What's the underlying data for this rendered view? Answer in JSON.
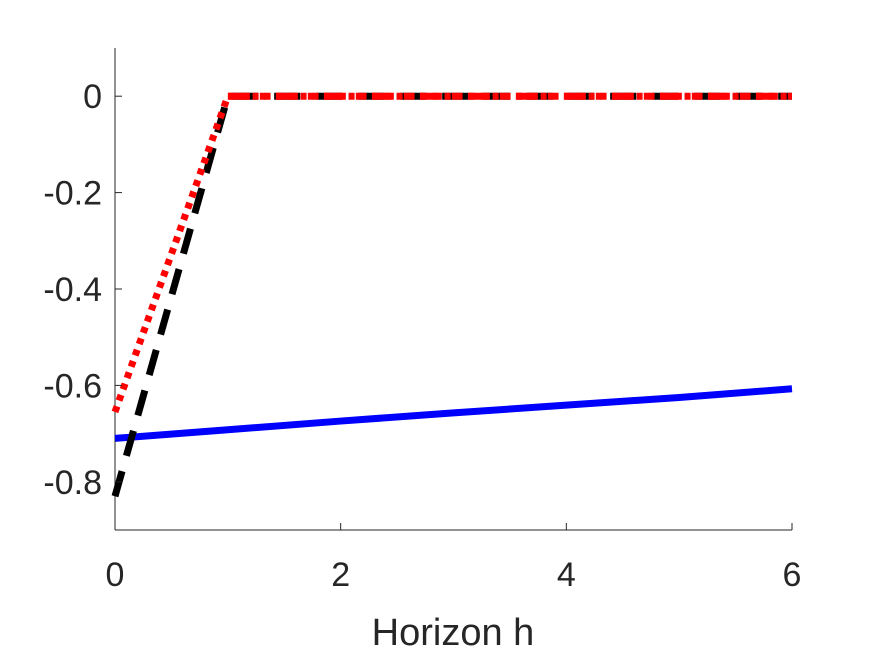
{
  "chart_data": {
    "type": "line",
    "title": "",
    "xlabel": "Horizon h",
    "ylabel": "",
    "xlim": [
      0,
      6
    ],
    "ylim": [
      -0.9,
      0.1
    ],
    "xticks": [
      0,
      2,
      4,
      6
    ],
    "xtick_labels": [
      "0",
      "2",
      "4",
      "6"
    ],
    "yticks": [
      0,
      -0.2,
      -0.4,
      -0.6,
      -0.8
    ],
    "ytick_labels": [
      "0",
      "-0.2",
      "-0.4",
      "-0.6",
      "-0.8"
    ],
    "grid": false,
    "legend": "none",
    "series": [
      {
        "color": "#0000ff",
        "style": "solid",
        "x": [
          0,
          1,
          2,
          3,
          4,
          5,
          6
        ],
        "y": [
          -0.71,
          -0.692,
          -0.674,
          -0.657,
          -0.641,
          -0.625,
          -0.607
        ]
      },
      {
        "color": "#000000",
        "style": "dashed",
        "x": [
          0,
          1,
          2,
          3,
          4,
          5,
          6
        ],
        "y": [
          -0.83,
          0,
          0,
          0,
          0,
          0,
          0
        ]
      },
      {
        "color": "#ff0000",
        "style": "dotted",
        "x": [
          0,
          1,
          2,
          3,
          4,
          5,
          6
        ],
        "y": [
          -0.655,
          0,
          0,
          0,
          0,
          0,
          0
        ]
      },
      {
        "color": "#ff0000",
        "style": "dash-dot",
        "x": [
          1,
          2,
          3,
          4,
          5,
          6
        ],
        "y": [
          0,
          0,
          0,
          0,
          0,
          0
        ]
      }
    ]
  }
}
